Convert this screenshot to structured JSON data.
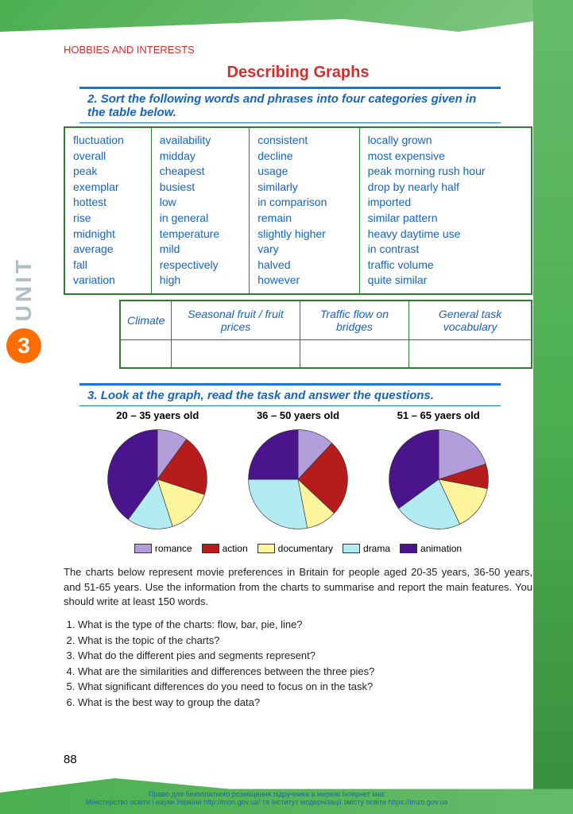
{
  "unit": {
    "label": "UNIT",
    "number": "3"
  },
  "section": "HOBBIES AND INTERESTS",
  "title": "Describing Graphs",
  "task2": {
    "number": "2.",
    "text": "Sort the following words and phrases into four categories given in the table below.",
    "columns": [
      [
        "fluctuation",
        "overall",
        "peak",
        "exemplar",
        "hottest",
        "rise",
        "midnight",
        "average",
        "fall",
        "variation"
      ],
      [
        "availability",
        "midday",
        "cheapest",
        "busiest",
        "low",
        "in general",
        "temperature",
        "mild",
        "respectively",
        "high"
      ],
      [
        "consistent",
        "decline",
        "usage",
        "similarly",
        "in comparison",
        "remain",
        "slightly higher",
        "vary",
        "halved",
        "however"
      ],
      [
        "locally grown",
        "most expensive",
        "peak morning rush hour",
        "drop by nearly half",
        "imported",
        "similar pattern",
        "heavy daytime use",
        "in contrast",
        "traffic volume",
        "quite similar"
      ]
    ],
    "categories": [
      "Climate",
      "Seasonal fruit / fruit prices",
      "Traffic flow on bridges",
      "General task vocabulary"
    ]
  },
  "task3": {
    "number": "3.",
    "text": "Look at the graph, read the task and answer the questions.",
    "pies": [
      {
        "title": "20 – 35 yaers old",
        "slices": [
          {
            "label": "romance",
            "value": 10,
            "color": "#b39ddb"
          },
          {
            "label": "action",
            "value": 20,
            "color": "#b71c1c"
          },
          {
            "label": "documentary",
            "value": 15,
            "color": "#fff59d"
          },
          {
            "label": "drama",
            "value": 15,
            "color": "#b2ebf2"
          },
          {
            "label": "animation",
            "value": 40,
            "color": "#4a148c"
          }
        ]
      },
      {
        "title": "36 – 50 yaers old",
        "slices": [
          {
            "label": "romance",
            "value": 12,
            "color": "#b39ddb"
          },
          {
            "label": "action",
            "value": 25,
            "color": "#b71c1c"
          },
          {
            "label": "documentary",
            "value": 10,
            "color": "#fff59d"
          },
          {
            "label": "drama",
            "value": 28,
            "color": "#b2ebf2"
          },
          {
            "label": "animation",
            "value": 25,
            "color": "#4a148c"
          }
        ]
      },
      {
        "title": "51 – 65 yaers old",
        "slices": [
          {
            "label": "romance",
            "value": 20,
            "color": "#b39ddb"
          },
          {
            "label": "action",
            "value": 8,
            "color": "#b71c1c"
          },
          {
            "label": "documentary",
            "value": 15,
            "color": "#fff59d"
          },
          {
            "label": "drama",
            "value": 22,
            "color": "#b2ebf2"
          },
          {
            "label": "animation",
            "value": 35,
            "color": "#4a148c"
          }
        ]
      }
    ],
    "legend": [
      {
        "label": "romance",
        "color": "#b39ddb"
      },
      {
        "label": "action",
        "color": "#b71c1c"
      },
      {
        "label": "documentary",
        "color": "#fff59d"
      },
      {
        "label": "drama",
        "color": "#b2ebf2"
      },
      {
        "label": "animation",
        "color": "#4a148c"
      }
    ],
    "description": "The charts below represent movie preferences in Britain for people aged 20-35 years, 36-50 years, and 51-65 years. Use the information from the charts to summarise and report the main features. You should write at least 150 words.",
    "questions": [
      "What is the type of the charts: flow, bar, pie, line?",
      "What is the topic of the charts?",
      "What do the different pies and segments represent?",
      "What are the similarities and differences between the three pies?",
      "What significant differences do you need to focus on in the task?",
      "What is the best way to group the data?"
    ]
  },
  "pageNumber": "88",
  "footer": {
    "line1": "Право для безоплатного розміщення підручника в мережі Інтернет має",
    "line2": "Міністерство освіти і науки України http://mon.gov.ua/ та Інститут модернізації змісту освіти https://imzo.gov.ua"
  }
}
